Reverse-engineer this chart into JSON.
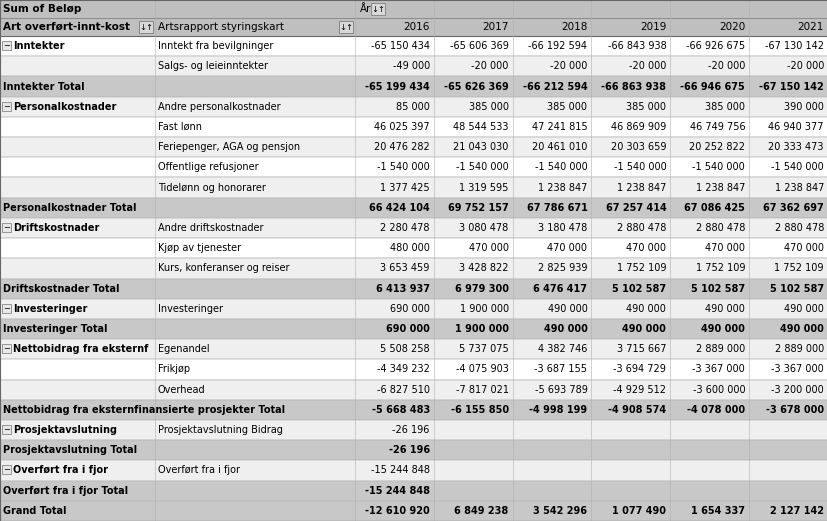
{
  "rows": [
    {
      "col1": "⋓Inntekter",
      "col1_bold": true,
      "col2": "Inntekt fra bevilgninger",
      "total": false,
      "bg": "white",
      "vals": [
        "-65 150 434",
        "-65 606 369",
        "-66 192 594",
        "-66 843 938",
        "-66 926 675",
        "-67 130 142"
      ]
    },
    {
      "col1": "",
      "col1_bold": false,
      "col2": "Salgs- og leieinntekter",
      "total": false,
      "bg": "white",
      "vals": [
        "-49 000",
        "-20 000",
        "-20 000",
        "-20 000",
        "-20 000",
        "-20 000"
      ]
    },
    {
      "col1": "Inntekter Total",
      "col1_bold": true,
      "col2": "",
      "total": true,
      "bg": "gray",
      "vals": [
        "-65 199 434",
        "-65 626 369",
        "-66 212 594",
        "-66 863 938",
        "-66 946 675",
        "-67 150 142"
      ]
    },
    {
      "col1": "⋓Personalkostnader",
      "col1_bold": true,
      "col2": "Andre personalkostnader",
      "total": false,
      "bg": "white",
      "vals": [
        "85 000",
        "385 000",
        "385 000",
        "385 000",
        "385 000",
        "390 000"
      ]
    },
    {
      "col1": "",
      "col1_bold": false,
      "col2": "Fast lønn",
      "total": false,
      "bg": "white",
      "vals": [
        "46 025 397",
        "48 544 533",
        "47 241 815",
        "46 869 909",
        "46 749 756",
        "46 940 377"
      ]
    },
    {
      "col1": "",
      "col1_bold": false,
      "col2": "Feriepenger, AGA og pensjon",
      "total": false,
      "bg": "white",
      "vals": [
        "20 476 282",
        "21 043 030",
        "20 461 010",
        "20 303 659",
        "20 252 822",
        "20 333 473"
      ]
    },
    {
      "col1": "",
      "col1_bold": false,
      "col2": "Offentlige refusjoner",
      "total": false,
      "bg": "white",
      "vals": [
        "-1 540 000",
        "-1 540 000",
        "-1 540 000",
        "-1 540 000",
        "-1 540 000",
        "-1 540 000"
      ]
    },
    {
      "col1": "",
      "col1_bold": false,
      "col2": "Tidelønn og honorarer",
      "total": false,
      "bg": "white",
      "vals": [
        "1 377 425",
        "1 319 595",
        "1 238 847",
        "1 238 847",
        "1 238 847",
        "1 238 847"
      ]
    },
    {
      "col1": "Personalkostnader Total",
      "col1_bold": true,
      "col2": "",
      "total": true,
      "bg": "gray",
      "vals": [
        "66 424 104",
        "69 752 157",
        "67 786 671",
        "67 257 414",
        "67 086 425",
        "67 362 697"
      ]
    },
    {
      "col1": "⋓Driftskostnader",
      "col1_bold": true,
      "col2": "Andre driftskostnader",
      "total": false,
      "bg": "white",
      "vals": [
        "2 280 478",
        "3 080 478",
        "3 180 478",
        "2 880 478",
        "2 880 478",
        "2 880 478"
      ]
    },
    {
      "col1": "",
      "col1_bold": false,
      "col2": "Kjøp av tjenester",
      "total": false,
      "bg": "white",
      "vals": [
        "480 000",
        "470 000",
        "470 000",
        "470 000",
        "470 000",
        "470 000"
      ]
    },
    {
      "col1": "",
      "col1_bold": false,
      "col2": "Kurs, konferanser og reiser",
      "total": false,
      "bg": "white",
      "vals": [
        "3 653 459",
        "3 428 822",
        "2 825 939",
        "1 752 109",
        "1 752 109",
        "1 752 109"
      ]
    },
    {
      "col1": "Driftskostnader Total",
      "col1_bold": true,
      "col2": "",
      "total": true,
      "bg": "gray",
      "vals": [
        "6 413 937",
        "6 979 300",
        "6 476 417",
        "5 102 587",
        "5 102 587",
        "5 102 587"
      ]
    },
    {
      "col1": "⋓Investeringer",
      "col1_bold": true,
      "col2": "Investeringer",
      "total": false,
      "bg": "white",
      "vals": [
        "690 000",
        "1 900 000",
        "490 000",
        "490 000",
        "490 000",
        "490 000"
      ]
    },
    {
      "col1": "Investeringer Total",
      "col1_bold": true,
      "col2": "",
      "total": true,
      "bg": "gray",
      "vals": [
        "690 000",
        "1 900 000",
        "490 000",
        "490 000",
        "490 000",
        "490 000"
      ]
    },
    {
      "col1": "⋓Nettobidrag fra eksternf",
      "col1_bold": true,
      "col2": "Egenandel",
      "total": false,
      "bg": "white",
      "vals": [
        "5 508 258",
        "5 737 075",
        "4 382 746",
        "3 715 667",
        "2 889 000",
        "2 889 000"
      ]
    },
    {
      "col1": "",
      "col1_bold": false,
      "col2": "Frikjøp",
      "total": false,
      "bg": "white",
      "vals": [
        "-4 349 232",
        "-4 075 903",
        "-3 687 155",
        "-3 694 729",
        "-3 367 000",
        "-3 367 000"
      ]
    },
    {
      "col1": "",
      "col1_bold": false,
      "col2": "Overhead",
      "total": false,
      "bg": "white",
      "vals": [
        "-6 827 510",
        "-7 817 021",
        "-5 693 789",
        "-4 929 512",
        "-3 600 000",
        "-3 200 000"
      ]
    },
    {
      "col1": "Nettobidrag fra eksternfinansierte prosjekter Total",
      "col1_bold": true,
      "col2": "",
      "total": true,
      "bg": "gray",
      "vals": [
        "-5 668 483",
        "-6 155 850",
        "-4 998 199",
        "-4 908 574",
        "-4 078 000",
        "-3 678 000"
      ]
    },
    {
      "col1": "⋓Prosjektavslutning",
      "col1_bold": true,
      "col2": "Prosjektavslutning Bidrag",
      "total": false,
      "bg": "white",
      "vals": [
        "-26 196",
        "",
        "",
        "",
        "",
        ""
      ]
    },
    {
      "col1": "Prosjektavslutning Total",
      "col1_bold": true,
      "col2": "",
      "total": true,
      "bg": "gray",
      "vals": [
        "-26 196",
        "",
        "",
        "",
        "",
        ""
      ]
    },
    {
      "col1": "⋓Overført fra i fjor",
      "col1_bold": true,
      "col2": "Overført fra i fjor",
      "total": false,
      "bg": "white",
      "vals": [
        "-15 244 848",
        "",
        "",
        "",
        "",
        ""
      ]
    },
    {
      "col1": "Overført fra i fjor Total",
      "col1_bold": true,
      "col2": "",
      "total": true,
      "bg": "gray",
      "vals": [
        "-15 244 848",
        "",
        "",
        "",
        "",
        ""
      ]
    },
    {
      "col1": "Grand Total",
      "col1_bold": true,
      "col2": "",
      "total": true,
      "bg": "gray",
      "vals": [
        "-12 610 920",
        "6 849 238",
        "3 542 296",
        "1 077 490",
        "1 654 337",
        "2 127 142"
      ]
    }
  ],
  "col_years": [
    "2016",
    "2017",
    "2018",
    "2019",
    "2020",
    "2021"
  ],
  "header1_text": "Sum of Beløp",
  "header1_yr": "År",
  "header2_col1": "Art overført-innt-kost",
  "header2_col2": "Artsrapport styringskart",
  "hdr_bg": "#bfbfbf",
  "total_bg": "#c8c8c8",
  "data_bg": "#ffffff",
  "alt_bg": "#efefef",
  "font_size": 7.0,
  "header_font_size": 7.5,
  "c0x": 0,
  "c0w": 155,
  "c1x": 155,
  "c1w": 200,
  "year_start": 355
}
